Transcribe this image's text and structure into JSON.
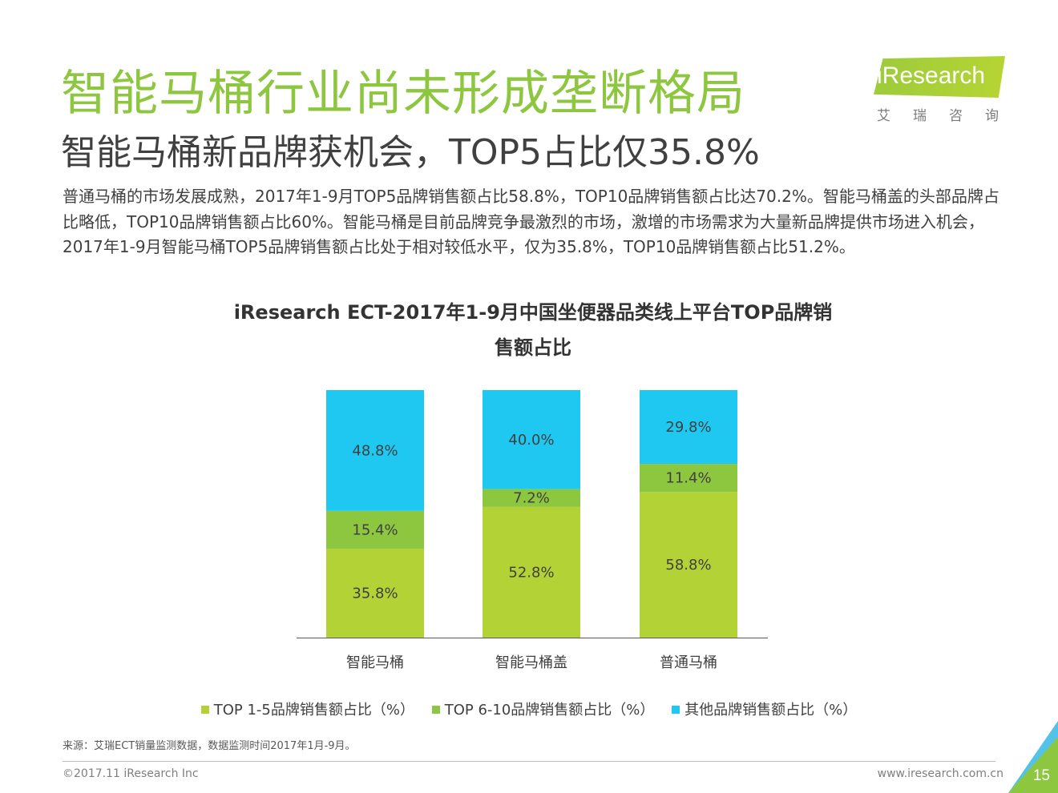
{
  "title": "智能马桶行业尚未形成垄断格局",
  "subtitle": "智能马桶新品牌获机会，TOP5占比仅35.8%",
  "logo": {
    "word": "iResearch",
    "cn": "艾瑞咨询"
  },
  "body_text": "普通马桶的市场发展成熟，2017年1-9月TOP5品牌销售额占比58.8%，TOP10品牌销售额占比达70.2%。智能马桶盖的头部品牌占比略低，TOP10品牌销售额占比60%。智能马桶是目前品牌竞争最激烈的市场，激增的市场需求为大量新品牌提供市场进入机会，2017年1-9月智能马桶TOP5品牌销售额占比处于相对较低水平，仅为35.8%，TOP10品牌销售额占比51.2%。",
  "chart_data": {
    "type": "bar",
    "stacked": true,
    "title": "iResearch ECT-2017年1-9月中国坐便器品类线上平台TOP品牌销售额占比",
    "categories": [
      "智能马桶",
      "智能马桶盖",
      "普通马桶"
    ],
    "ylim": [
      0,
      100
    ],
    "grid": false,
    "legend_position": "bottom",
    "value_suffix": "%",
    "series": [
      {
        "name": "TOP 1-5品牌销售额占比（%）",
        "values": [
          35.8,
          52.8,
          58.8
        ],
        "color": "#b2d235"
      },
      {
        "name": "TOP 6-10品牌销售额占比（%）",
        "values": [
          15.4,
          7.2,
          11.4
        ],
        "color": "#8dc63f"
      },
      {
        "name": "其他品牌销售额占比（%）",
        "values": [
          48.8,
          40.0,
          29.8
        ],
        "color": "#1ec8f0"
      }
    ]
  },
  "footer": {
    "source": "来源：艾瑞ECT销量监测数据，数据监测时间2017年1月-9月。",
    "copyright": "©2017.11 iResearch Inc",
    "website": "www.iresearch.com.cn",
    "page": "15"
  },
  "colors": {
    "title": "#8dc63f",
    "accent_blue": "#52c2e9"
  }
}
